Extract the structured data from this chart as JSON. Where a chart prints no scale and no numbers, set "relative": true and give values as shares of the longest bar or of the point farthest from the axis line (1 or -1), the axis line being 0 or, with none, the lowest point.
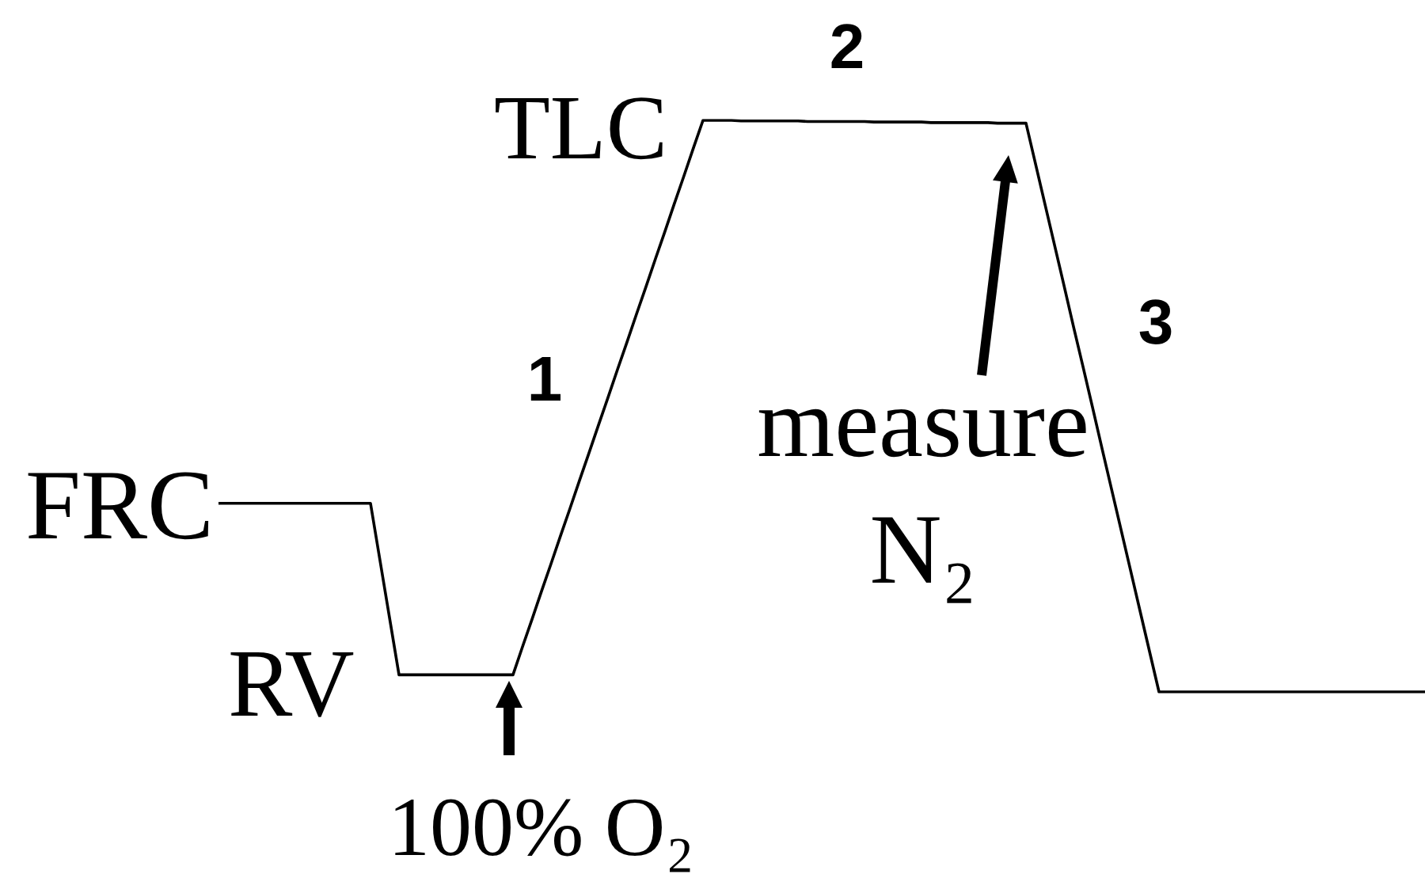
{
  "chart_data": {
    "type": "line",
    "relative": true,
    "color": "#000000",
    "categories": [
      null,
      null,
      null,
      null,
      null,
      null,
      null,
      null,
      null,
      null,
      null,
      null,
      null,
      null,
      null,
      null,
      null,
      null,
      null,
      null,
      null,
      null,
      null,
      null,
      null,
      null,
      null,
      null,
      null,
      null,
      null,
      null,
      null,
      null,
      null,
      null,
      null,
      null,
      null,
      null,
      null,
      null,
      null,
      null,
      null,
      null,
      null,
      null,
      null,
      null,
      null,
      null,
      null,
      null,
      null,
      null,
      null,
      null,
      null,
      null,
      null,
      null,
      null,
      null,
      null,
      null,
      null,
      null,
      null,
      null,
      null,
      null,
      null,
      null,
      null,
      null,
      null,
      null,
      null,
      null,
      null,
      null,
      null,
      null,
      null,
      null,
      null,
      null,
      null,
      null,
      null,
      null,
      null,
      null,
      null,
      null,
      null,
      null,
      null,
      null,
      null,
      null,
      null,
      null,
      null,
      null,
      null,
      null,
      null,
      null,
      null,
      null,
      null,
      null,
      null,
      null,
      null,
      null,
      null,
      null,
      null,
      null,
      null,
      null,
      null,
      null,
      null,
      null
    ],
    "values": [
      0.33,
      0.33,
      0.33,
      0.33,
      0.33,
      0.33,
      0.33,
      0.33,
      0.33,
      0.33,
      0.33,
      0.33,
      0.33,
      0.33,
      0.33,
      0.33,
      0.33,
      0.23,
      0.13,
      0.03,
      0.03,
      0.03,
      0.03,
      0.03,
      0.03,
      0.03,
      0.03,
      0.03,
      0.03,
      0.03,
      0.03,
      0.03,
      0.079,
      0.127,
      0.176,
      0.224,
      0.273,
      0.321,
      0.37,
      0.418,
      0.467,
      0.515,
      0.564,
      0.612,
      0.661,
      0.709,
      0.758,
      0.806,
      0.855,
      0.903,
      0.952,
      1,
      1,
      1,
      1,
      0.999,
      0.999,
      0.999,
      0.999,
      0.999,
      0.999,
      0.999,
      0.998,
      0.998,
      0.998,
      0.998,
      0.998,
      0.998,
      0.998,
      0.997,
      0.997,
      0.997,
      0.997,
      0.997,
      0.997,
      0.996,
      0.996,
      0.996,
      0.996,
      0.996,
      0.996,
      0.996,
      0.995,
      0.995,
      0.995,
      0.995,
      0.924,
      0.853,
      0.782,
      0.711,
      0.639,
      0.569,
      0.498,
      0.426,
      0.355,
      0.284,
      0.213,
      0.142,
      0.071,
      0,
      0,
      0,
      0,
      0,
      0,
      0,
      0,
      0,
      0,
      0,
      0,
      0,
      0,
      0,
      0,
      0,
      0,
      0,
      0,
      0,
      0,
      0,
      0,
      0,
      0,
      0,
      0,
      0
    ],
    "annotations": [
      "FRC",
      "RV",
      "TLC",
      "1",
      "2",
      "3",
      "measure N₂",
      "100% O₂"
    ]
  }
}
